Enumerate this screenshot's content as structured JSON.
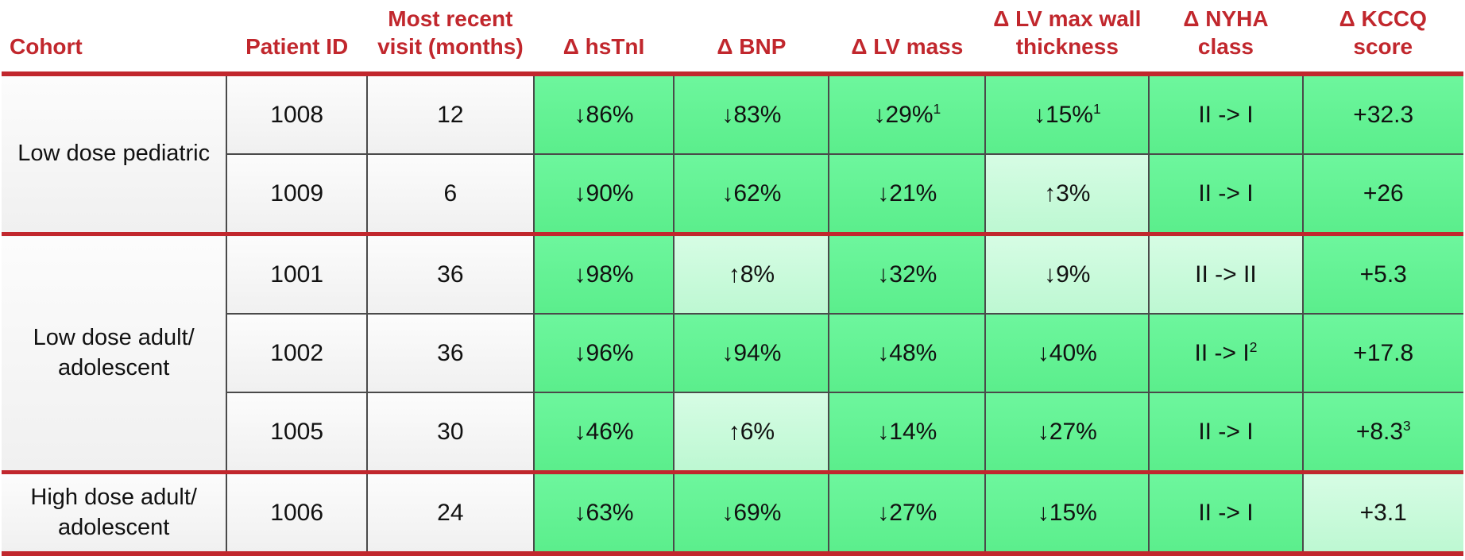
{
  "colors": {
    "accent_red": "#c1272d",
    "strong_green": "#63f294",
    "light_green": "#c6fad8",
    "grid_border": "#4a4a4a",
    "plain_cell": "#f5f5f5"
  },
  "table": {
    "columns": [
      {
        "key": "cohort",
        "label": "Cohort"
      },
      {
        "key": "patient-id",
        "label": "Patient ID"
      },
      {
        "key": "visit-months",
        "label": "Most recent visit (months)"
      },
      {
        "key": "hstni",
        "label": "Δ hsTnI"
      },
      {
        "key": "bnp",
        "label": "Δ BNP"
      },
      {
        "key": "lv-mass",
        "label": "Δ LV mass"
      },
      {
        "key": "lv-wall-thickness",
        "label": "Δ LV max wall thickness"
      },
      {
        "key": "nyha",
        "label": "Δ NYHA class"
      },
      {
        "key": "kccq",
        "label": "Δ KCCQ score"
      }
    ],
    "metric_keys": [
      "hstni",
      "bnp",
      "lv-mass",
      "lv-wall-thickness",
      "nyha",
      "kccq"
    ],
    "groups": [
      {
        "cohort": "Low dose pediatric",
        "rows": [
          {
            "patient_id": "1008",
            "visit_months": "12",
            "cells": [
              {
                "text": "↓86%",
                "sup": "",
                "tone": "strong"
              },
              {
                "text": "↓83%",
                "sup": "",
                "tone": "strong"
              },
              {
                "text": "↓29%",
                "sup": "1",
                "tone": "strong"
              },
              {
                "text": "↓15%",
                "sup": "1",
                "tone": "strong"
              },
              {
                "text": "II -> I",
                "sup": "",
                "tone": "strong"
              },
              {
                "text": "+32.3",
                "sup": "",
                "tone": "strong"
              }
            ]
          },
          {
            "patient_id": "1009",
            "visit_months": "6",
            "cells": [
              {
                "text": "↓90%",
                "sup": "",
                "tone": "strong"
              },
              {
                "text": "↓62%",
                "sup": "",
                "tone": "strong"
              },
              {
                "text": "↓21%",
                "sup": "",
                "tone": "strong"
              },
              {
                "text": "↑3%",
                "sup": "",
                "tone": "light"
              },
              {
                "text": "II -> I",
                "sup": "",
                "tone": "strong"
              },
              {
                "text": "+26",
                "sup": "",
                "tone": "strong"
              }
            ]
          }
        ]
      },
      {
        "cohort": "Low dose adult/ adolescent",
        "rows": [
          {
            "patient_id": "1001",
            "visit_months": "36",
            "cells": [
              {
                "text": "↓98%",
                "sup": "",
                "tone": "strong"
              },
              {
                "text": "↑8%",
                "sup": "",
                "tone": "light"
              },
              {
                "text": "↓32%",
                "sup": "",
                "tone": "strong"
              },
              {
                "text": "↓9%",
                "sup": "",
                "tone": "light"
              },
              {
                "text": "II -> II",
                "sup": "",
                "tone": "light"
              },
              {
                "text": "+5.3",
                "sup": "",
                "tone": "strong"
              }
            ]
          },
          {
            "patient_id": "1002",
            "visit_months": "36",
            "cells": [
              {
                "text": "↓96%",
                "sup": "",
                "tone": "strong"
              },
              {
                "text": "↓94%",
                "sup": "",
                "tone": "strong"
              },
              {
                "text": "↓48%",
                "sup": "",
                "tone": "strong"
              },
              {
                "text": "↓40%",
                "sup": "",
                "tone": "strong"
              },
              {
                "text": "II -> I",
                "sup": "2",
                "tone": "strong"
              },
              {
                "text": "+17.8",
                "sup": "",
                "tone": "strong"
              }
            ]
          },
          {
            "patient_id": "1005",
            "visit_months": "30",
            "cells": [
              {
                "text": "↓46%",
                "sup": "",
                "tone": "strong"
              },
              {
                "text": "↑6%",
                "sup": "",
                "tone": "light"
              },
              {
                "text": "↓14%",
                "sup": "",
                "tone": "strong"
              },
              {
                "text": "↓27%",
                "sup": "",
                "tone": "strong"
              },
              {
                "text": "II -> I",
                "sup": "",
                "tone": "strong"
              },
              {
                "text": "+8.3",
                "sup": "3",
                "tone": "strong"
              }
            ]
          }
        ]
      },
      {
        "cohort": "High dose adult/ adolescent",
        "rows": [
          {
            "patient_id": "1006",
            "visit_months": "24",
            "cells": [
              {
                "text": "↓63%",
                "sup": "",
                "tone": "strong"
              },
              {
                "text": "↓69%",
                "sup": "",
                "tone": "strong"
              },
              {
                "text": "↓27%",
                "sup": "",
                "tone": "strong"
              },
              {
                "text": "↓15%",
                "sup": "",
                "tone": "strong"
              },
              {
                "text": "II -> I",
                "sup": "",
                "tone": "strong"
              },
              {
                "text": "+3.1",
                "sup": "",
                "tone": "light"
              }
            ]
          }
        ]
      }
    ]
  }
}
